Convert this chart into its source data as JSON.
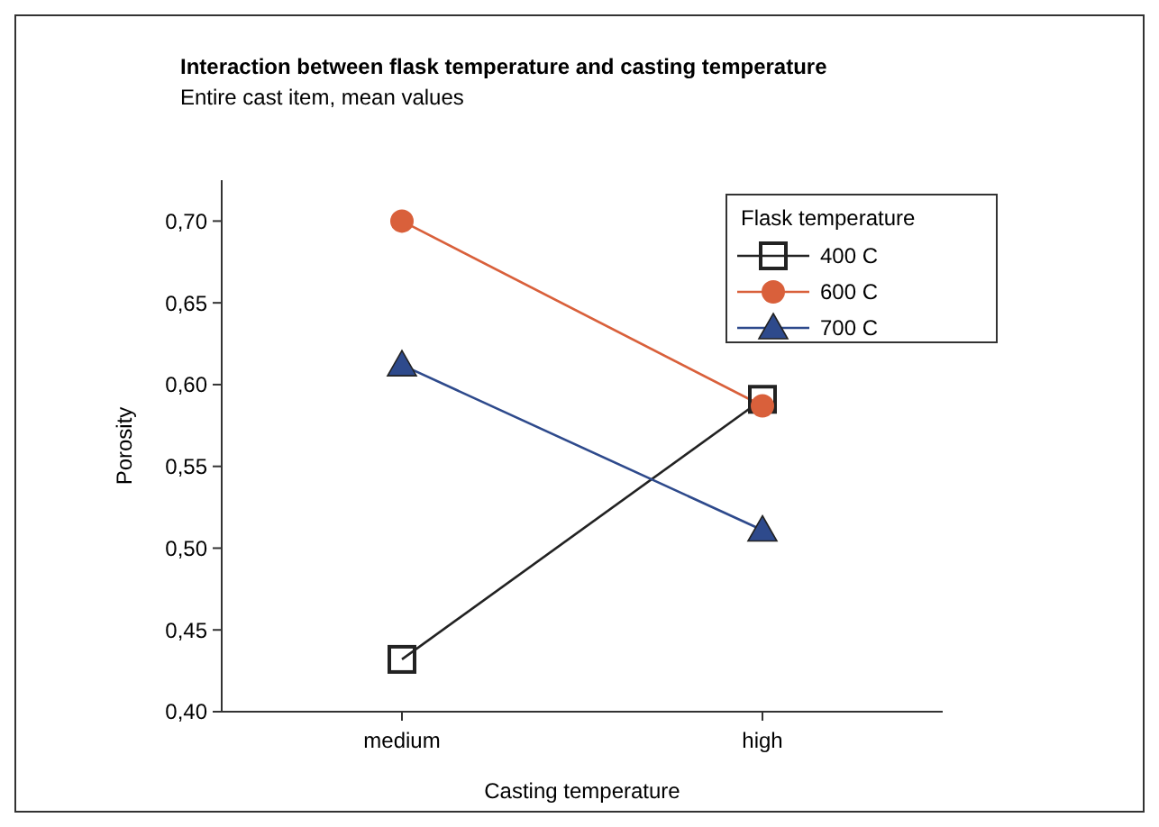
{
  "chart_data": {
    "type": "line",
    "title": "Interaction between flask temperature and casting temperature",
    "subtitle": "Entire cast item, mean values",
    "xlabel": "Casting temperature",
    "ylabel": "Porosity",
    "legend_title": "Flask temperature",
    "legend": "top right",
    "grid": false,
    "categories": [
      "medium",
      "high"
    ],
    "ylim": [
      0.4,
      0.725
    ],
    "yticks": [
      {
        "value": 0.4,
        "label": "0,40"
      },
      {
        "value": 0.45,
        "label": "0,45"
      },
      {
        "value": 0.5,
        "label": "0,50"
      },
      {
        "value": 0.55,
        "label": "0,55"
      },
      {
        "value": 0.6,
        "label": "0,60"
      },
      {
        "value": 0.65,
        "label": "0,65"
      },
      {
        "value": 0.7,
        "label": "0,70"
      }
    ],
    "series": [
      {
        "name": "400 C",
        "color": "#222222",
        "marker": "square",
        "values": [
          0.432,
          0.591
        ]
      },
      {
        "name": "600 C",
        "color": "#d9603b",
        "marker": "circle",
        "values": [
          0.7,
          0.587
        ]
      },
      {
        "name": "700 C",
        "color": "#2e4a8c",
        "marker": "triangle",
        "values": [
          0.612,
          0.511
        ]
      }
    ]
  }
}
